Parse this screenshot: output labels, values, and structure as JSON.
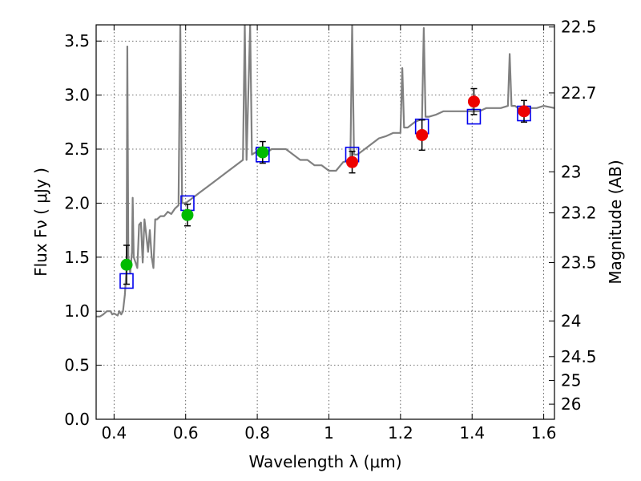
{
  "chart_data": {
    "type": "scatter",
    "xlabel": "Wavelength  λ (μm)",
    "ylabel": "Flux  Fν  ( μJy )",
    "y2label": "Magnitude (AB)",
    "xlim": [
      0.35,
      1.63
    ],
    "ylim": [
      0.0,
      3.65
    ],
    "grid": true,
    "x_ticks": [
      {
        "v": 0.4,
        "label": "0.4"
      },
      {
        "v": 0.6,
        "label": "0.6"
      },
      {
        "v": 0.8,
        "label": "0.8"
      },
      {
        "v": 1.0,
        "label": "1"
      },
      {
        "v": 1.2,
        "label": "1.2"
      },
      {
        "v": 1.4,
        "label": "1.4"
      },
      {
        "v": 1.6,
        "label": "1.6"
      }
    ],
    "y_ticks": [
      {
        "v": 0.0,
        "label": "0.0"
      },
      {
        "v": 0.5,
        "label": "0.5"
      },
      {
        "v": 1.0,
        "label": "1.0"
      },
      {
        "v": 1.5,
        "label": "1.5"
      },
      {
        "v": 2.0,
        "label": "2.0"
      },
      {
        "v": 2.5,
        "label": "2.5"
      },
      {
        "v": 3.0,
        "label": "3.0"
      },
      {
        "v": 3.5,
        "label": "3.5"
      }
    ],
    "y2_ticks": [
      {
        "flux": 3.63,
        "label": "22.5"
      },
      {
        "flux": 3.02,
        "label": "22.7"
      },
      {
        "flux": 2.29,
        "label": "23"
      },
      {
        "flux": 1.91,
        "label": "23.2"
      },
      {
        "flux": 1.45,
        "label": "23.5"
      },
      {
        "flux": 0.91,
        "label": "24"
      },
      {
        "flux": 0.58,
        "label": "24.5"
      },
      {
        "flux": 0.36,
        "label": "25"
      },
      {
        "flux": 0.14,
        "label": "26"
      }
    ],
    "colors": {
      "spectrum": "#808080",
      "model_box": "#0000ee",
      "green_point": "#00bb00",
      "red_point": "#ee0000",
      "errorbar": "#000000"
    },
    "spectrum": {
      "points": [
        [
          0.35,
          0.95
        ],
        [
          0.36,
          0.95
        ],
        [
          0.37,
          0.97
        ],
        [
          0.38,
          1.0
        ],
        [
          0.39,
          1.0
        ],
        [
          0.395,
          0.97
        ],
        [
          0.4,
          0.98
        ],
        [
          0.41,
          0.96
        ],
        [
          0.415,
          1.0
        ],
        [
          0.42,
          0.97
        ],
        [
          0.425,
          1.0
        ],
        [
          0.43,
          1.15
        ],
        [
          0.435,
          1.4
        ],
        [
          0.437,
          3.45
        ],
        [
          0.44,
          1.5
        ],
        [
          0.445,
          1.35
        ],
        [
          0.45,
          1.55
        ],
        [
          0.452,
          2.05
        ],
        [
          0.455,
          1.5
        ],
        [
          0.46,
          1.45
        ],
        [
          0.465,
          1.4
        ],
        [
          0.47,
          1.8
        ],
        [
          0.475,
          1.82
        ],
        [
          0.48,
          1.45
        ],
        [
          0.485,
          1.85
        ],
        [
          0.49,
          1.7
        ],
        [
          0.495,
          1.55
        ],
        [
          0.5,
          1.75
        ],
        [
          0.505,
          1.5
        ],
        [
          0.51,
          1.4
        ],
        [
          0.515,
          1.85
        ],
        [
          0.52,
          1.85
        ],
        [
          0.53,
          1.88
        ],
        [
          0.54,
          1.88
        ],
        [
          0.55,
          1.92
        ],
        [
          0.56,
          1.9
        ],
        [
          0.57,
          1.95
        ],
        [
          0.58,
          1.98
        ],
        [
          0.585,
          3.65
        ],
        [
          0.59,
          2.0
        ],
        [
          0.6,
          2.0
        ],
        [
          0.62,
          2.05
        ],
        [
          0.64,
          2.1
        ],
        [
          0.66,
          2.15
        ],
        [
          0.68,
          2.2
        ],
        [
          0.7,
          2.25
        ],
        [
          0.72,
          2.3
        ],
        [
          0.74,
          2.35
        ],
        [
          0.76,
          2.4
        ],
        [
          0.765,
          3.65
        ],
        [
          0.77,
          2.4
        ],
        [
          0.78,
          3.65
        ],
        [
          0.785,
          2.45
        ],
        [
          0.8,
          2.48
        ],
        [
          0.82,
          2.45
        ],
        [
          0.84,
          2.5
        ],
        [
          0.86,
          2.5
        ],
        [
          0.88,
          2.5
        ],
        [
          0.9,
          2.45
        ],
        [
          0.92,
          2.4
        ],
        [
          0.94,
          2.4
        ],
        [
          0.96,
          2.35
        ],
        [
          0.98,
          2.35
        ],
        [
          1.0,
          2.3
        ],
        [
          1.02,
          2.3
        ],
        [
          1.04,
          2.38
        ],
        [
          1.06,
          2.4
        ],
        [
          1.065,
          3.65
        ],
        [
          1.07,
          2.45
        ],
        [
          1.08,
          2.45
        ],
        [
          1.1,
          2.5
        ],
        [
          1.12,
          2.55
        ],
        [
          1.14,
          2.6
        ],
        [
          1.16,
          2.62
        ],
        [
          1.18,
          2.65
        ],
        [
          1.2,
          2.65
        ],
        [
          1.205,
          3.25
        ],
        [
          1.21,
          2.7
        ],
        [
          1.22,
          2.7
        ],
        [
          1.24,
          2.75
        ],
        [
          1.26,
          2.78
        ],
        [
          1.265,
          3.62
        ],
        [
          1.27,
          2.8
        ],
        [
          1.28,
          2.8
        ],
        [
          1.3,
          2.82
        ],
        [
          1.32,
          2.85
        ],
        [
          1.34,
          2.85
        ],
        [
          1.36,
          2.85
        ],
        [
          1.38,
          2.85
        ],
        [
          1.4,
          2.85
        ],
        [
          1.42,
          2.85
        ],
        [
          1.44,
          2.88
        ],
        [
          1.46,
          2.88
        ],
        [
          1.48,
          2.88
        ],
        [
          1.5,
          2.9
        ],
        [
          1.505,
          3.38
        ],
        [
          1.51,
          2.9
        ],
        [
          1.52,
          2.9
        ],
        [
          1.54,
          2.85
        ],
        [
          1.56,
          2.88
        ],
        [
          1.58,
          2.88
        ],
        [
          1.6,
          2.9
        ],
        [
          1.63,
          2.88
        ]
      ]
    },
    "model_boxes": [
      {
        "x": 0.435,
        "y": 1.28
      },
      {
        "x": 0.605,
        "y": 2.0
      },
      {
        "x": 0.815,
        "y": 2.45
      },
      {
        "x": 1.065,
        "y": 2.45
      },
      {
        "x": 1.26,
        "y": 2.71
      },
      {
        "x": 1.405,
        "y": 2.8
      },
      {
        "x": 1.545,
        "y": 2.83
      }
    ],
    "series": [
      {
        "color_key": "green_point",
        "points": [
          {
            "x": 0.435,
            "y": 1.43,
            "err": 0.18
          },
          {
            "x": 0.605,
            "y": 1.89,
            "err": 0.1
          },
          {
            "x": 0.815,
            "y": 2.47,
            "err": 0.1
          }
        ]
      },
      {
        "color_key": "red_point",
        "points": [
          {
            "x": 1.065,
            "y": 2.38,
            "err": 0.1
          },
          {
            "x": 1.26,
            "y": 2.63,
            "err": 0.14
          },
          {
            "x": 1.405,
            "y": 2.94,
            "err": 0.12
          },
          {
            "x": 1.545,
            "y": 2.85,
            "err": 0.1
          }
        ]
      }
    ]
  }
}
